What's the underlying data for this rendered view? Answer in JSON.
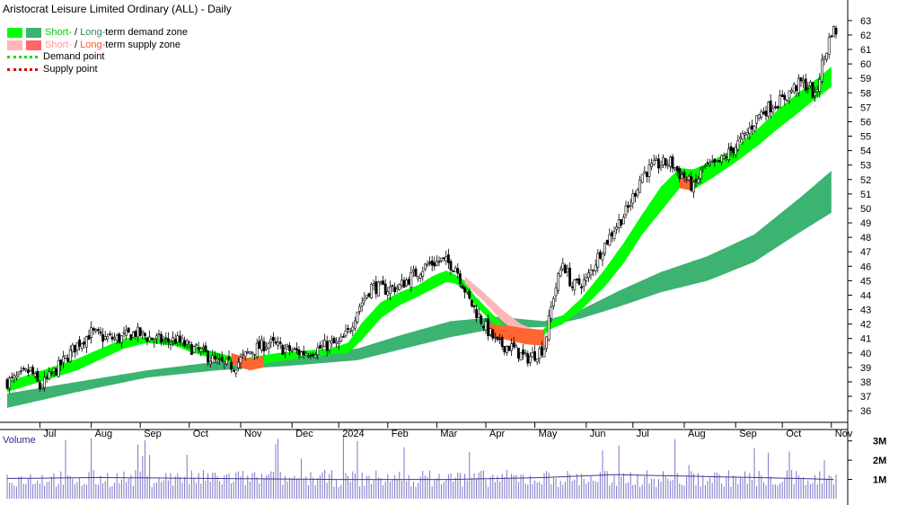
{
  "title": "Aristocrat Leisure Limited Ordinary (ALL) - Daily",
  "legend": {
    "demand_zone": {
      "short": "Short-",
      "sep": " / ",
      "long": "Long-",
      "rest": "term demand zone"
    },
    "supply_zone": {
      "short": "Short-",
      "sep": " / ",
      "long": "Long-",
      "rest": "term supply zone"
    },
    "demand_point": "Demand point",
    "supply_point": "Supply point"
  },
  "colors": {
    "short_demand": "#00ff00",
    "long_demand": "#3cb371",
    "short_supply": "#ffb6b6",
    "long_supply": "#ff6633",
    "demand_point": "#00dd00",
    "supply_point": "#dd0000",
    "volume": "#7b74c9",
    "volume_avg": "#3a3a8c",
    "text_long_demand": "#2e8b57",
    "text_short_supply": "#ff9999",
    "text_long_supply": "#ff5533"
  },
  "volume_label": "Volume",
  "chart_data": {
    "type": "candlestick",
    "price_axis": {
      "min": 35.2,
      "max": 63.8,
      "ticks": [
        36,
        37,
        38,
        39,
        40,
        41,
        42,
        43,
        44,
        45,
        46,
        47,
        48,
        49,
        50,
        51,
        52,
        53,
        54,
        55,
        56,
        57,
        58,
        59,
        60,
        61,
        62,
        63
      ]
    },
    "volume_axis": {
      "max": 3.5,
      "ticks": [
        {
          "v": 1,
          "label": "1M"
        },
        {
          "v": 2,
          "label": "2M"
        },
        {
          "v": 3,
          "label": "3M"
        }
      ]
    },
    "months": [
      {
        "label": "Jul",
        "day": 14
      },
      {
        "label": "Aug",
        "day": 36
      },
      {
        "label": "Sep",
        "day": 57
      },
      {
        "label": "Oct",
        "day": 78
      },
      {
        "label": "Nov",
        "day": 100
      },
      {
        "label": "Dec",
        "day": 122
      },
      {
        "label": "2024",
        "day": 142
      },
      {
        "label": "Feb",
        "day": 163
      },
      {
        "label": "Mar",
        "day": 184
      },
      {
        "label": "Apr",
        "day": 205
      },
      {
        "label": "May",
        "day": 226
      },
      {
        "label": "Jun",
        "day": 248
      },
      {
        "label": "Jul",
        "day": 268
      },
      {
        "label": "Aug",
        "day": 290
      },
      {
        "label": "Sep",
        "day": 312
      },
      {
        "label": "Oct",
        "day": 332
      },
      {
        "label": "Nov",
        "day": 353
      }
    ],
    "price_keys": [
      [
        0,
        38.0
      ],
      [
        5,
        38.3
      ],
      [
        10,
        38.8
      ],
      [
        14,
        37.6
      ],
      [
        18,
        38.3
      ],
      [
        24,
        39.4
      ],
      [
        30,
        40.6
      ],
      [
        36,
        41.4
      ],
      [
        42,
        41.0
      ],
      [
        48,
        41.0
      ],
      [
        55,
        41.4
      ],
      [
        62,
        41.0
      ],
      [
        68,
        40.8
      ],
      [
        72,
        40.9
      ],
      [
        78,
        40.4
      ],
      [
        84,
        40.0
      ],
      [
        90,
        39.3
      ],
      [
        97,
        39.1
      ],
      [
        104,
        40.1
      ],
      [
        112,
        40.7
      ],
      [
        118,
        40.3
      ],
      [
        126,
        40.0
      ],
      [
        132,
        40.2
      ],
      [
        138,
        40.6
      ],
      [
        142,
        40.6
      ],
      [
        146,
        41.4
      ],
      [
        150,
        43.0
      ],
      [
        156,
        44.6
      ],
      [
        162,
        44.4
      ],
      [
        168,
        44.6
      ],
      [
        174,
        45.4
      ],
      [
        180,
        46.1
      ],
      [
        186,
        46.4
      ],
      [
        192,
        46.0
      ],
      [
        198,
        43.6
      ],
      [
        204,
        42.0
      ],
      [
        210,
        40.6
      ],
      [
        216,
        40.4
      ],
      [
        222,
        39.6
      ],
      [
        226,
        39.9
      ],
      [
        230,
        40.4
      ],
      [
        234,
        44.0
      ],
      [
        238,
        46.3
      ],
      [
        242,
        44.6
      ],
      [
        248,
        45.0
      ],
      [
        254,
        47.0
      ],
      [
        260,
        48.6
      ],
      [
        266,
        50.0
      ],
      [
        272,
        52.4
      ],
      [
        278,
        53.0
      ],
      [
        284,
        53.2
      ],
      [
        288,
        52.4
      ],
      [
        290,
        52.2
      ],
      [
        294,
        51.4
      ],
      [
        298,
        52.8
      ],
      [
        304,
        53.0
      ],
      [
        310,
        54.0
      ],
      [
        316,
        55.0
      ],
      [
        322,
        56.5
      ],
      [
        328,
        57.2
      ],
      [
        332,
        57.5
      ],
      [
        336,
        58.2
      ],
      [
        340,
        58.7
      ],
      [
        344,
        58.4
      ],
      [
        346,
        57.6
      ],
      [
        349,
        60.0
      ],
      [
        351,
        61.0
      ],
      [
        353,
        62.3
      ]
    ],
    "short_demand_top": [
      [
        0,
        38.0
      ],
      [
        30,
        39.6
      ],
      [
        50,
        41.0
      ],
      [
        60,
        41.1
      ],
      [
        72,
        40.9
      ],
      [
        78,
        40.6
      ],
      [
        88,
        40.1
      ],
      [
        100,
        39.6
      ],
      [
        116,
        40.0
      ],
      [
        138,
        40.3
      ],
      [
        146,
        40.7
      ],
      [
        152,
        42.1
      ],
      [
        160,
        43.5
      ],
      [
        168,
        44.2
      ],
      [
        176,
        44.7
      ],
      [
        182,
        45.3
      ],
      [
        188,
        45.7
      ],
      [
        192,
        45.4
      ],
      [
        196,
        45.0
      ],
      [
        200,
        44.0
      ],
      [
        206,
        43.0
      ],
      [
        212,
        42.0
      ],
      [
        218,
        41.4
      ],
      [
        224,
        41.0
      ],
      [
        228,
        41.3
      ],
      [
        232,
        42.1
      ],
      [
        238,
        42.6
      ],
      [
        246,
        43.8
      ],
      [
        256,
        45.8
      ],
      [
        264,
        47.6
      ],
      [
        272,
        49.6
      ],
      [
        280,
        51.5
      ],
      [
        288,
        52.8
      ],
      [
        294,
        52.7
      ],
      [
        302,
        53.3
      ],
      [
        312,
        54.2
      ],
      [
        322,
        55.6
      ],
      [
        330,
        56.8
      ],
      [
        338,
        57.9
      ],
      [
        344,
        58.6
      ],
      [
        353,
        59.8
      ]
    ],
    "short_demand_bottom": [
      [
        0,
        37.3
      ],
      [
        30,
        38.8
      ],
      [
        50,
        40.3
      ],
      [
        60,
        40.7
      ],
      [
        72,
        40.5
      ],
      [
        78,
        40.1
      ],
      [
        88,
        39.6
      ],
      [
        100,
        39.1
      ],
      [
        116,
        39.4
      ],
      [
        138,
        39.9
      ],
      [
        146,
        40.0
      ],
      [
        152,
        40.9
      ],
      [
        160,
        42.4
      ],
      [
        168,
        43.3
      ],
      [
        176,
        43.9
      ],
      [
        182,
        44.4
      ],
      [
        188,
        44.9
      ],
      [
        192,
        44.8
      ],
      [
        196,
        44.3
      ],
      [
        200,
        43.4
      ],
      [
        206,
        42.4
      ],
      [
        212,
        41.5
      ],
      [
        218,
        40.8
      ],
      [
        224,
        40.6
      ],
      [
        228,
        40.8
      ],
      [
        232,
        41.6
      ],
      [
        238,
        42.0
      ],
      [
        246,
        43.0
      ],
      [
        256,
        44.6
      ],
      [
        264,
        46.2
      ],
      [
        272,
        48.2
      ],
      [
        280,
        49.8
      ],
      [
        288,
        51.4
      ],
      [
        294,
        51.3
      ],
      [
        302,
        52.1
      ],
      [
        312,
        53.2
      ],
      [
        322,
        54.4
      ],
      [
        330,
        55.5
      ],
      [
        338,
        56.5
      ],
      [
        344,
        57.3
      ],
      [
        353,
        58.4
      ]
    ],
    "long_demand_top": [
      [
        0,
        37.2
      ],
      [
        30,
        38.0
      ],
      [
        60,
        38.8
      ],
      [
        90,
        39.4
      ],
      [
        120,
        39.8
      ],
      [
        150,
        40.3
      ],
      [
        170,
        41.3
      ],
      [
        190,
        42.2
      ],
      [
        210,
        42.5
      ],
      [
        230,
        42.2
      ],
      [
        246,
        43.0
      ],
      [
        262,
        44.3
      ],
      [
        280,
        45.6
      ],
      [
        300,
        46.7
      ],
      [
        320,
        48.2
      ],
      [
        340,
        50.8
      ],
      [
        353,
        52.6
      ]
    ],
    "long_demand_bottom": [
      [
        0,
        36.2
      ],
      [
        30,
        37.3
      ],
      [
        60,
        38.3
      ],
      [
        90,
        38.8
      ],
      [
        120,
        39.1
      ],
      [
        150,
        39.5
      ],
      [
        170,
        40.3
      ],
      [
        190,
        41.1
      ],
      [
        210,
        41.7
      ],
      [
        230,
        41.8
      ],
      [
        246,
        42.4
      ],
      [
        262,
        43.2
      ],
      [
        280,
        44.2
      ],
      [
        300,
        45.0
      ],
      [
        320,
        46.3
      ],
      [
        340,
        48.4
      ],
      [
        353,
        49.7
      ]
    ],
    "short_supply_top": [
      [
        196,
        45.3
      ],
      [
        204,
        44.2
      ],
      [
        212,
        43.0
      ],
      [
        220,
        42.0
      ],
      [
        226,
        41.6
      ],
      [
        232,
        41.1
      ]
    ],
    "short_supply_bottom": [
      [
        196,
        44.8
      ],
      [
        204,
        43.6
      ],
      [
        212,
        42.2
      ],
      [
        220,
        41.2
      ],
      [
        226,
        40.6
      ],
      [
        232,
        40.5
      ]
    ],
    "long_supply_top": [
      [
        206,
        42.0
      ],
      [
        214,
        41.9
      ],
      [
        222,
        41.7
      ],
      [
        230,
        41.6
      ]
    ],
    "long_supply_bottom": [
      [
        206,
        41.2
      ],
      [
        214,
        40.9
      ],
      [
        222,
        40.6
      ],
      [
        230,
        40.5
      ]
    ],
    "small_supply": [
      {
        "top": [
          [
            96,
            40.0
          ],
          [
            104,
            39.6
          ],
          [
            110,
            39.8
          ]
        ],
        "bottom": [
          [
            96,
            39.2
          ],
          [
            104,
            38.8
          ],
          [
            110,
            39.0
          ]
        ]
      },
      {
        "top": [
          [
            288,
            52.3
          ],
          [
            294,
            52.1
          ]
        ],
        "bottom": [
          [
            288,
            51.4
          ],
          [
            294,
            51.2
          ]
        ]
      }
    ],
    "volume_avg": [
      [
        0,
        1.05
      ],
      [
        40,
        1.1
      ],
      [
        90,
        1.05
      ],
      [
        140,
        1.0
      ],
      [
        190,
        1.0
      ],
      [
        230,
        1.1
      ],
      [
        260,
        1.25
      ],
      [
        300,
        1.15
      ],
      [
        340,
        1.05
      ],
      [
        353,
        1.0
      ]
    ]
  }
}
